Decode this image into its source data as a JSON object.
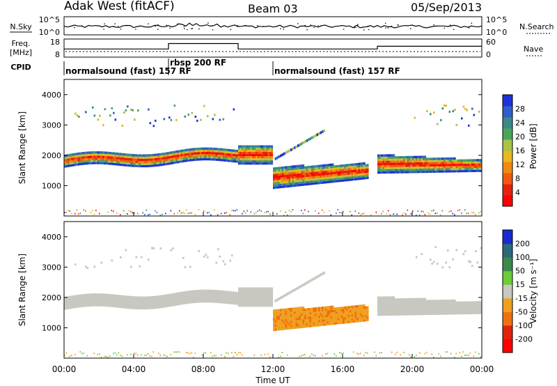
{
  "header": {
    "station": "Adak West (fitACF)",
    "beam": "Beam 03",
    "date": "05/Sep/2013"
  },
  "noise_panel": {
    "left_label": "N.Sky",
    "right_label": "N.Search",
    "left_ticks": [
      "10^5",
      "10^0"
    ],
    "right_ticks": [
      "10^5",
      "10^0"
    ]
  },
  "freq_panel": {
    "left_label_line1": "Freq.",
    "left_label_line2": "[MHz]",
    "right_label": "Nave",
    "left_ticks": [
      "18",
      "8"
    ],
    "right_ticks": [
      "60",
      "0"
    ],
    "freq_steps": [
      {
        "start_h": 0,
        "end_h": 6,
        "value": 12.5
      },
      {
        "start_h": 6,
        "end_h": 10,
        "value": 15.5
      },
      {
        "start_h": 10,
        "end_h": 18,
        "value": 12.5
      },
      {
        "start_h": 18,
        "end_h": 24,
        "value": 14
      }
    ]
  },
  "cpid": {
    "label": "CPID",
    "segments": [
      {
        "text": "normalsound (fast) 157 RF",
        "start_h": 0
      },
      {
        "text": "rbsp 200 RF",
        "start_h": 6
      },
      {
        "text": "normalsound (fast) 157 RF",
        "start_h": 12
      }
    ]
  },
  "chart_data": [
    {
      "type": "heatmap",
      "name": "power",
      "ylabel": "Slant Range [km]",
      "yticks": [
        "1000",
        "2000",
        "3000",
        "4000"
      ],
      "ylim": [
        0,
        4500
      ],
      "xlim": [
        0,
        24
      ],
      "colorbar_label": "Power [dB]",
      "colorbar_ticks": [
        "28",
        "24",
        "20",
        "16",
        "12",
        "8",
        "4"
      ],
      "colorbar_colors": [
        "#2030d8",
        "#2f5fc8",
        "#3a8a8a",
        "#4aa55a",
        "#a8c24a",
        "#e8b820",
        "#f08a10",
        "#f05a10",
        "#e82010",
        "#ff0000"
      ],
      "echo_bands": [
        {
          "t0": 0,
          "t1": 10,
          "r0": 1650,
          "r1": 2000,
          "level": "strong"
        },
        {
          "t0": 10,
          "t1": 15,
          "r0": 1800,
          "r1": 2700,
          "level": "medium"
        },
        {
          "t0": 12,
          "t1": 17.5,
          "r0": 900,
          "r1": 1700,
          "level": "medium"
        },
        {
          "t0": 18,
          "t1": 24,
          "r0": 1500,
          "r1": 2000,
          "level": "strong"
        }
      ]
    },
    {
      "type": "heatmap",
      "name": "velocity",
      "ylabel": "Slant Range [km]",
      "yticks": [
        "1000",
        "2000",
        "3000",
        "4000"
      ],
      "ylim": [
        0,
        4500
      ],
      "xlim": [
        0,
        24
      ],
      "xticks": [
        "00:00",
        "04:00",
        "08:00",
        "12:00",
        "16:00",
        "20:00",
        "00:00"
      ],
      "xlabel": "Time UT",
      "colorbar_label": "Velocity [m s⁻¹]",
      "colorbar_ticks": [
        "200",
        "100",
        "50",
        "15",
        "-15",
        "-50",
        "-100",
        "-200"
      ],
      "colorbar_colors": [
        "#1a2ad0",
        "#2a6a7a",
        "#3a8a4a",
        "#6ccc3a",
        "#c8c8c0",
        "#f0a020",
        "#f07010",
        "#e02010",
        "#ff0000"
      ]
    }
  ]
}
